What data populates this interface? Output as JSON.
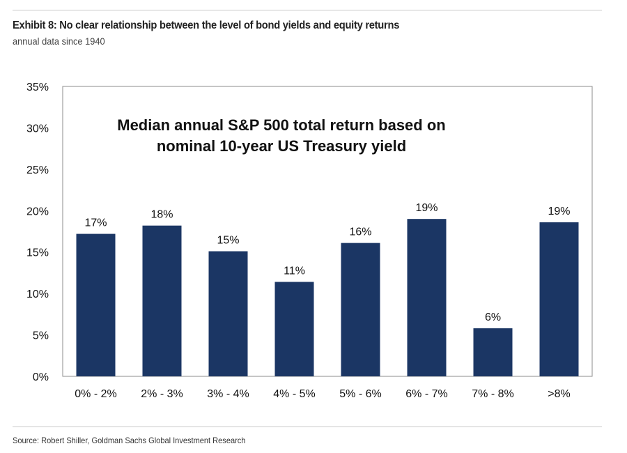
{
  "header": {
    "title": "Exhibit 8: No clear relationship between the level of bond yields and equity returns",
    "subtitle": "annual data since 1940"
  },
  "footer": {
    "source": "Source: Robert Shiller, Goldman Sachs Global Investment Research"
  },
  "colors": {
    "bar": "#1b3664",
    "frame": "#8c8c8c"
  },
  "chart_data": {
    "type": "bar",
    "title_lines": [
      "Median annual S&P 500 total return based on",
      "nominal 10-year US Treasury yield"
    ],
    "categories": [
      "0% - 2%",
      "2% - 3%",
      "3% - 4%",
      "4% - 5%",
      "5% - 6%",
      "6% - 7%",
      "7% - 8%",
      ">8%"
    ],
    "values": [
      17.2,
      18.2,
      15.1,
      11.4,
      16.1,
      19.0,
      5.8,
      18.6
    ],
    "value_labels": [
      "17%",
      "18%",
      "15%",
      "11%",
      "16%",
      "19%",
      "6%",
      "19%"
    ],
    "yticks": [
      0,
      5,
      10,
      15,
      20,
      25,
      30,
      35
    ],
    "ytick_labels": [
      "0%",
      "5%",
      "10%",
      "15%",
      "20%",
      "25%",
      "30%",
      "35%"
    ],
    "ylim": [
      0,
      35
    ],
    "xlabel": "",
    "ylabel": "",
    "grid": false
  }
}
